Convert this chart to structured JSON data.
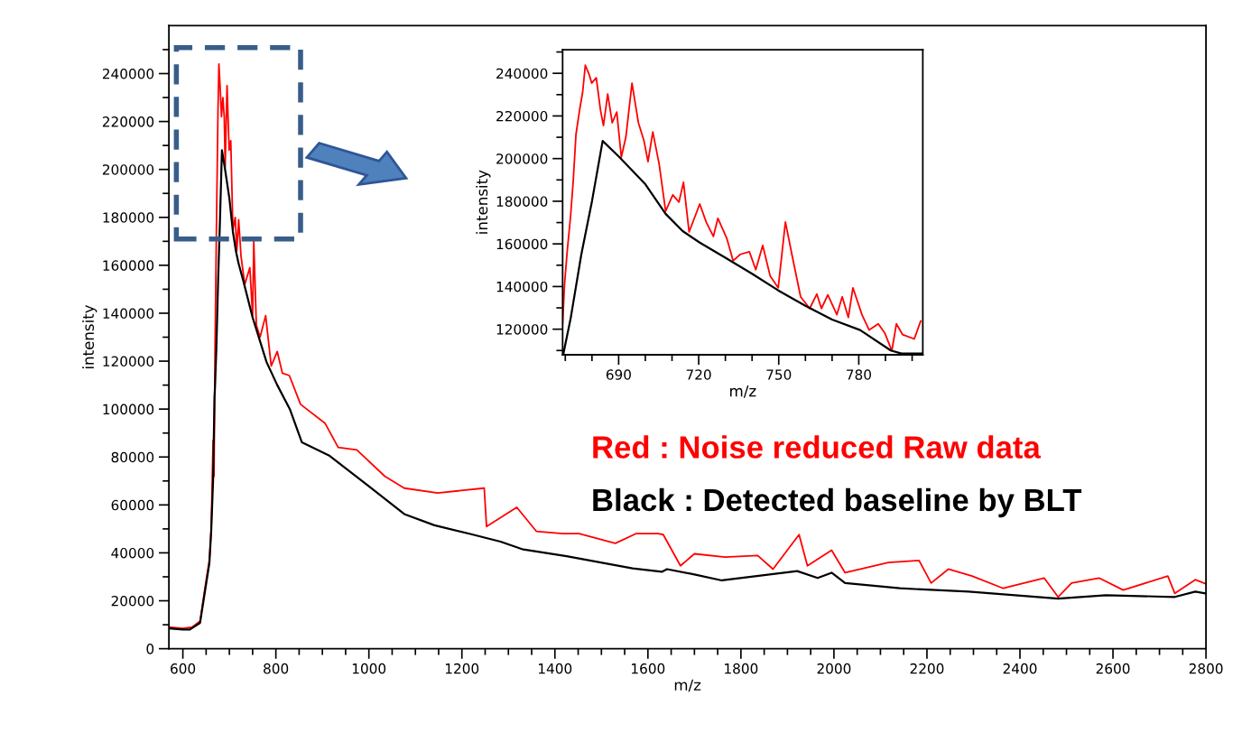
{
  "chart_data": [
    {
      "type": "line",
      "xlabel": "m/z",
      "ylabel": "intensity",
      "xlim": [
        570,
        2800
      ],
      "ylim": [
        0,
        260000
      ],
      "xticks": [
        600,
        {
          "value": 650,
          "label": null
        },
        {
          "value": 700,
          "label": null
        },
        {
          "value": 750,
          "label": null
        },
        800,
        {
          "value": 850,
          "label": null
        },
        {
          "value": 900,
          "label": null
        },
        {
          "value": 950,
          "label": null
        },
        1000,
        {
          "value": 1050,
          "label": null
        },
        {
          "value": 1100,
          "label": null
        },
        {
          "value": 1150,
          "label": null
        },
        1200,
        {
          "value": 1250,
          "label": null
        },
        {
          "value": 1300,
          "label": null
        },
        {
          "value": 1350,
          "label": null
        },
        1400,
        {
          "value": 1450,
          "label": null
        },
        {
          "value": 1500,
          "label": null
        },
        {
          "value": 1550,
          "label": null
        },
        1600,
        {
          "value": 1650,
          "label": null
        },
        {
          "value": 1700,
          "label": null
        },
        {
          "value": 1750,
          "label": null
        },
        1800,
        {
          "value": 1850,
          "label": null
        },
        {
          "value": 1900,
          "label": null
        },
        {
          "value": 1950,
          "label": null
        },
        2000,
        {
          "value": 2050,
          "label": null
        },
        {
          "value": 2100,
          "label": null
        },
        {
          "value": 2150,
          "label": null
        },
        2200,
        {
          "value": 2250,
          "label": null
        },
        {
          "value": 2300,
          "label": null
        },
        {
          "value": 2350,
          "label": null
        },
        2400,
        {
          "value": 2450,
          "label": null
        },
        {
          "value": 2500,
          "label": null
        },
        {
          "value": 2550,
          "label": null
        },
        2600,
        {
          "value": 2650,
          "label": null
        },
        {
          "value": 2700,
          "label": null
        },
        {
          "value": 2750,
          "label": null
        },
        2800
      ],
      "yticks": [
        0,
        {
          "value": 10000,
          "label": null
        },
        20000,
        {
          "value": 30000,
          "label": null
        },
        40000,
        {
          "value": 50000,
          "label": null
        },
        60000,
        {
          "value": 70000,
          "label": null
        },
        80000,
        {
          "value": 90000,
          "label": null
        },
        100000,
        {
          "value": 110000,
          "label": null
        },
        120000,
        {
          "value": 130000,
          "label": null
        },
        140000,
        {
          "value": 150000,
          "label": null
        },
        160000,
        {
          "value": 170000,
          "label": null
        },
        180000,
        {
          "value": 190000,
          "label": null
        },
        200000,
        {
          "value": 210000,
          "label": null
        },
        220000,
        {
          "value": 230000,
          "label": null
        },
        240000,
        {
          "value": 250000,
          "label": null
        }
      ],
      "marker": "none",
      "line_style": "solid",
      "series": [
        {
          "color": "#ff0000",
          "x": [
            570,
            600,
            620,
            637,
            648,
            657,
            661,
            665,
            667,
            669,
            672,
            675.5,
            677.5,
            680,
            683,
            686,
            689,
            691,
            695,
            699.5,
            703,
            707.6,
            712.6,
            716,
            720,
            725,
            733,
            744,
            750,
            752.5,
            758,
            766,
            778,
            790,
            803,
            814,
            829,
            853,
            906,
            934,
            974,
            1034,
            1076,
            1148,
            1248,
            1253,
            1318,
            1360,
            1417,
            1452,
            1530,
            1574,
            1622,
            1633,
            1670,
            1700,
            1766,
            1836,
            1869,
            1925,
            1943,
            1995,
            2024,
            2117,
            2183,
            2209,
            2246,
            2297,
            2364,
            2452,
            2482,
            2511,
            2570,
            2622,
            2718,
            2733,
            2777,
            2800
          ],
          "values": [
            9000,
            8500,
            9000,
            11500,
            26000,
            37000,
            50000,
            87000,
            72000,
            122000,
            173000,
            224000,
            244000,
            235000,
            222000,
            230000,
            222000,
            201000,
            235000,
            208000,
            212000,
            175000,
            180000,
            166000,
            179000,
            164000,
            152000,
            159000,
            139000,
            170000,
            135000,
            130000,
            139000,
            118000,
            124000,
            115000,
            114000,
            102000,
            94000,
            84000,
            83000,
            72000,
            67000,
            65000,
            67000,
            51000,
            59000,
            49000,
            48000,
            48000,
            44000,
            48000,
            48000,
            47600,
            34600,
            39600,
            38200,
            38900,
            33200,
            47600,
            34600,
            41100,
            31700,
            36000,
            36800,
            27400,
            33200,
            30300,
            25200,
            29500,
            21600,
            27400,
            29500,
            24500,
            30300,
            23100,
            28800,
            27000
          ]
        },
        {
          "color": "#000000",
          "x": [
            570,
            600,
            615,
            637,
            648,
            657,
            661,
            665,
            668,
            669,
            672,
            676,
            680,
            684,
            690,
            700,
            707.6,
            714,
            720,
            730,
            750,
            780,
            803,
            830,
            856,
            914,
            998,
            1076,
            1141,
            1218,
            1283,
            1332,
            1425,
            1567,
            1630,
            1641,
            1700,
            1759,
            1921,
            1965,
            1995,
            2024,
            2142,
            2290,
            2482,
            2585,
            2733,
            2777,
            2800
          ],
          "values": [
            8500,
            8000,
            8000,
            10800,
            24500,
            35700,
            49400,
            70300,
            104900,
            108600,
            125000,
            155000,
            180000,
            208000,
            201000,
            188000,
            174000,
            166000,
            160600,
            153500,
            138200,
            119600,
            110000,
            100000,
            86100,
            80700,
            68100,
            56200,
            51500,
            47900,
            44700,
            41400,
            38600,
            33500,
            32100,
            33200,
            31000,
            28500,
            32400,
            29500,
            31700,
            27400,
            25200,
            23800,
            20900,
            22300,
            21600,
            23800,
            23000
          ]
        }
      ],
      "annotations": [
        "Red : Noise reduced Raw data",
        "Black : Detected baseline by BLT"
      ]
    },
    {
      "type": "line",
      "xlabel": "m/z",
      "ylabel": "intensity",
      "xlim": [
        669,
        804
      ],
      "ylim": [
        108000,
        251000
      ],
      "xticks": [
        {
          "value": 670,
          "label": null
        },
        {
          "value": 680,
          "label": null
        },
        690,
        {
          "value": 700,
          "label": null
        },
        {
          "value": 710,
          "label": null
        },
        720,
        {
          "value": 730,
          "label": null
        },
        {
          "value": 740,
          "label": null
        },
        750,
        {
          "value": 760,
          "label": null
        },
        {
          "value": 770,
          "label": null
        },
        780,
        {
          "value": 790,
          "label": null
        },
        {
          "value": 800,
          "label": null
        }
      ],
      "yticks": [
        {
          "value": 110000,
          "label": null
        },
        120000,
        {
          "value": 130000,
          "label": null
        },
        140000,
        {
          "value": 150000,
          "label": null
        },
        160000,
        {
          "value": 170000,
          "label": null
        },
        180000,
        {
          "value": 190000,
          "label": null
        },
        200000,
        {
          "value": 210000,
          "label": null
        },
        220000,
        {
          "value": 230000,
          "label": null
        },
        240000,
        {
          "value": 250000,
          "label": null
        }
      ],
      "marker": "none",
      "line_style": "solid",
      "series": [
        {
          "color": "#ff0000",
          "x": [
            669,
            669.7,
            670.7,
            672,
            673,
            674,
            675.5,
            676.5,
            677.5,
            678.9,
            679.9,
            681.6,
            683.2,
            684.3,
            685.9,
            687.6,
            689.3,
            691,
            692.7,
            695,
            697.4,
            699.5,
            701,
            702.8,
            705.2,
            707.6,
            710.3,
            712.6,
            714.3,
            716.4,
            720.4,
            722.8,
            725.5,
            727.2,
            730.5,
            732.9,
            735.6,
            739,
            741.4,
            744,
            746.8,
            749.8,
            752.5,
            755.2,
            758.2,
            761.6,
            764.3,
            766,
            768.4,
            771.8,
            773.8,
            776.1,
            777.8,
            781.2,
            783.9,
            787.3,
            789.7,
            792.4,
            794.1,
            796.4,
            800.8,
            803.2
          ],
          "values": [
            122500,
            140700,
            156300,
            173200,
            190100,
            211300,
            223900,
            231100,
            243800,
            239600,
            235400,
            237900,
            222700,
            215500,
            230300,
            216800,
            221800,
            200700,
            210000,
            235400,
            216800,
            208300,
            198600,
            212500,
            197300,
            175400,
            183000,
            179600,
            188900,
            165600,
            178700,
            170300,
            163500,
            172000,
            162700,
            152100,
            155100,
            156300,
            147900,
            159300,
            144900,
            139400,
            170300,
            153400,
            135200,
            129700,
            136500,
            129700,
            136100,
            126800,
            135200,
            125500,
            139400,
            126800,
            119600,
            122500,
            118300,
            109900,
            122500,
            117500,
            115400,
            123800
          ]
        },
        {
          "color": "#000000",
          "x": [
            669.3,
            672,
            676,
            680,
            684,
            690,
            700,
            707.6,
            714,
            720.4,
            730,
            740,
            749.8,
            760,
            770,
            780.5,
            792,
            796,
            804
          ],
          "values": [
            108600,
            125000,
            155000,
            180000,
            208300,
            201000,
            188000,
            174100,
            166000,
            160600,
            153500,
            146000,
            138200,
            131000,
            124500,
            119600,
            110000,
            108600,
            108600
          ]
        }
      ]
    }
  ]
}
